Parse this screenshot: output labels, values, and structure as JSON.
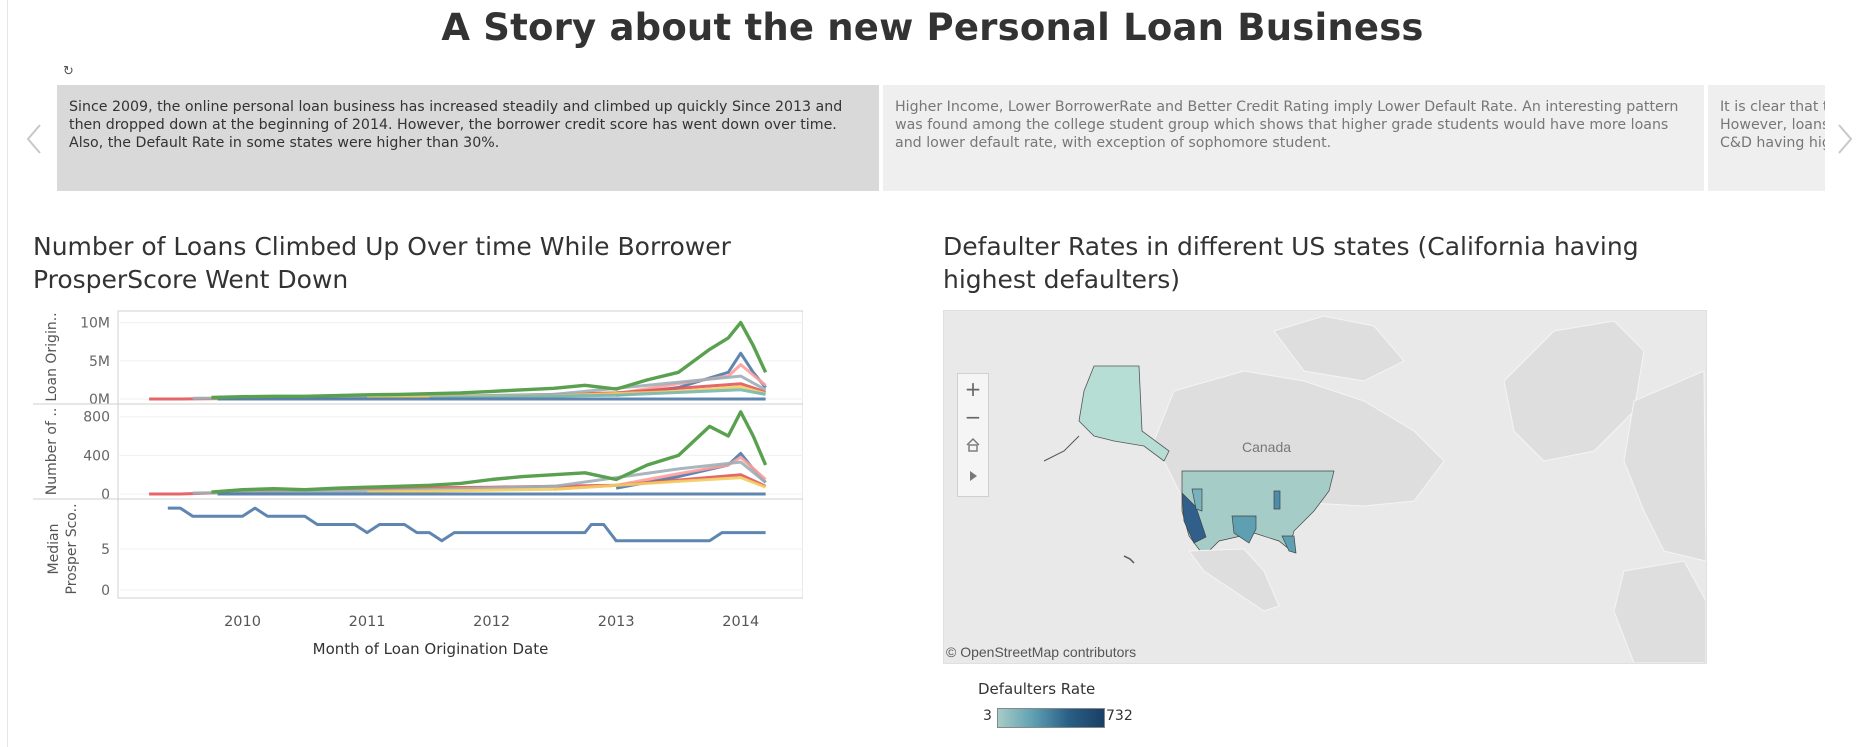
{
  "dashboard": {
    "title": "A Story about the new Personal Loan Business"
  },
  "story": {
    "points": [
      "Since 2009, the online personal loan business has increased steadily and climbed up quickly Since 2013 and then dropped down at the beginning of 2014. However, the borrower credit score has went down over time. Also, the Default Rate in some states were higher than 30%.",
      "Higher Income, Lower BorrowerRate and Better Credit Rating imply Lower Default Rate. An interesting pattern was found among the college student group which shows that higher grade students would have more loans and lower default rate, with exception of sophomore student.",
      "It is clear that t\nHowever, loans\nC&D having hig"
    ],
    "icons": {
      "revert": "revert-icon",
      "prev": "chevron-left-icon",
      "next": "chevron-right-icon"
    }
  },
  "left_sheet": {
    "title": "Number of Loans Climbed Up Over time While Borrower ProsperScore Went Down"
  },
  "chart_data": {
    "type": "line",
    "xlabel": "Month of Loan Origination Date",
    "x_ticks": [
      "2010",
      "2011",
      "2012",
      "2013",
      "2014"
    ],
    "panes": [
      {
        "ylabel": "Loan Origin..",
        "y_ticks": [
          "10M",
          "5M",
          "0M"
        ],
        "ylim": [
          0,
          11000000
        ],
        "series": [
          {
            "color": "#59a14f",
            "highlight": true,
            "points": [
              [
                2009.75,
                200000
              ],
              [
                2010.0,
                300000
              ],
              [
                2010.25,
                350000
              ],
              [
                2010.5,
                350000
              ],
              [
                2010.75,
                450000
              ],
              [
                2011.0,
                550000
              ],
              [
                2011.25,
                600000
              ],
              [
                2011.5,
                700000
              ],
              [
                2011.75,
                800000
              ],
              [
                2012.0,
                1000000
              ],
              [
                2012.25,
                1200000
              ],
              [
                2012.5,
                1400000
              ],
              [
                2012.75,
                1800000
              ],
              [
                2013.0,
                1300000
              ],
              [
                2013.25,
                2500000
              ],
              [
                2013.5,
                3500000
              ],
              [
                2013.75,
                6500000
              ],
              [
                2013.9,
                8000000
              ],
              [
                2014.0,
                10000000
              ],
              [
                2014.1,
                7000000
              ],
              [
                2014.2,
                3500000
              ]
            ]
          },
          {
            "color": "#4e79a7",
            "points": [
              [
                2013.0,
                500000
              ],
              [
                2013.5,
                1500000
              ],
              [
                2013.9,
                3500000
              ],
              [
                2014.0,
                6000000
              ],
              [
                2014.1,
                3500000
              ],
              [
                2014.2,
                1500000
              ]
            ]
          },
          {
            "color": "#ff9d9a",
            "points": [
              [
                2012.5,
                400000
              ],
              [
                2013.0,
                700000
              ],
              [
                2013.5,
                2000000
              ],
              [
                2013.9,
                3000000
              ],
              [
                2014.0,
                4500000
              ],
              [
                2014.2,
                1800000
              ]
            ]
          },
          {
            "color": "#e15759",
            "points": [
              [
                2009.25,
                0
              ],
              [
                2009.5,
                0
              ],
              [
                2012.0,
                400000
              ],
              [
                2013.0,
                800000
              ],
              [
                2014.0,
                2000000
              ],
              [
                2014.2,
                900000
              ]
            ]
          },
          {
            "color": "#9cafb7",
            "points": [
              [
                2009.6,
                100000
              ],
              [
                2011.0,
                200000
              ],
              [
                2012.5,
                600000
              ],
              [
                2013.5,
                2200000
              ],
              [
                2014.0,
                3000000
              ],
              [
                2014.2,
                1200000
              ]
            ]
          },
          {
            "color": "#f1ce63",
            "points": [
              [
                2011.0,
                150000
              ],
              [
                2012.5,
                400000
              ],
              [
                2013.5,
                1000000
              ],
              [
                2014.0,
                1600000
              ],
              [
                2014.2,
                700000
              ]
            ]
          },
          {
            "color": "#76b7b2",
            "points": [
              [
                2011.5,
                150000
              ],
              [
                2013.0,
                500000
              ],
              [
                2014.0,
                1200000
              ],
              [
                2014.2,
                600000
              ]
            ]
          },
          {
            "color": "#4e79a7",
            "points": [
              [
                2009.8,
                0
              ],
              [
                2014.2,
                0
              ]
            ]
          }
        ]
      },
      {
        "ylabel": "Number of ..",
        "y_ticks": [
          "800",
          "400",
          "0"
        ],
        "ylim": [
          0,
          880
        ],
        "series": [
          {
            "color": "#59a14f",
            "highlight": true,
            "points": [
              [
                2009.75,
                20
              ],
              [
                2010.0,
                45
              ],
              [
                2010.25,
                55
              ],
              [
                2010.5,
                45
              ],
              [
                2010.75,
                60
              ],
              [
                2011.0,
                70
              ],
              [
                2011.25,
                80
              ],
              [
                2011.5,
                90
              ],
              [
                2011.75,
                110
              ],
              [
                2012.0,
                150
              ],
              [
                2012.25,
                180
              ],
              [
                2012.5,
                200
              ],
              [
                2012.75,
                220
              ],
              [
                2013.0,
                150
              ],
              [
                2013.25,
                300
              ],
              [
                2013.5,
                400
              ],
              [
                2013.75,
                700
              ],
              [
                2013.9,
                600
              ],
              [
                2014.0,
                850
              ],
              [
                2014.1,
                600
              ],
              [
                2014.2,
                300
              ]
            ]
          },
          {
            "color": "#4e79a7",
            "points": [
              [
                2013.0,
                60
              ],
              [
                2013.5,
                180
              ],
              [
                2013.9,
                300
              ],
              [
                2014.0,
                420
              ],
              [
                2014.1,
                260
              ],
              [
                2014.2,
                120
              ]
            ]
          },
          {
            "color": "#ff9d9a",
            "points": [
              [
                2012.5,
                50
              ],
              [
                2013.0,
                90
              ],
              [
                2013.5,
                210
              ],
              [
                2013.9,
                300
              ],
              [
                2014.0,
                380
              ],
              [
                2014.2,
                150
              ]
            ]
          },
          {
            "color": "#e15759",
            "points": [
              [
                2009.25,
                0
              ],
              [
                2009.5,
                0
              ],
              [
                2011.0,
                60
              ],
              [
                2012.0,
                70
              ],
              [
                2013.0,
                90
              ],
              [
                2014.0,
                200
              ],
              [
                2014.2,
                80
              ]
            ]
          },
          {
            "color": "#9cafb7",
            "points": [
              [
                2009.6,
                10
              ],
              [
                2011.0,
                30
              ],
              [
                2012.5,
                80
              ],
              [
                2013.5,
                260
              ],
              [
                2014.0,
                330
              ],
              [
                2014.2,
                120
              ]
            ]
          },
          {
            "color": "#f1ce63",
            "points": [
              [
                2011.0,
                20
              ],
              [
                2012.5,
                50
              ],
              [
                2013.5,
                130
              ],
              [
                2014.0,
                170
              ],
              [
                2014.2,
                70
              ]
            ]
          },
          {
            "color": "#4e79a7",
            "points": [
              [
                2009.8,
                0
              ],
              [
                2014.2,
                0
              ]
            ]
          }
        ]
      },
      {
        "ylabel": "Median Prosper Sco..",
        "y_ticks": [
          "5",
          "0"
        ],
        "ylim": [
          -0.5,
          10.5
        ],
        "series": [
          {
            "color": "#4e79a7",
            "points": [
              [
                2009.4,
                10
              ],
              [
                2009.5,
                10
              ],
              [
                2009.6,
                9
              ],
              [
                2010.0,
                9
              ],
              [
                2010.1,
                10
              ],
              [
                2010.2,
                9
              ],
              [
                2010.5,
                9
              ],
              [
                2010.6,
                8
              ],
              [
                2010.9,
                8
              ],
              [
                2011.0,
                7
              ],
              [
                2011.1,
                8
              ],
              [
                2011.3,
                8
              ],
              [
                2011.4,
                7
              ],
              [
                2011.5,
                7
              ],
              [
                2011.6,
                6
              ],
              [
                2011.7,
                7
              ],
              [
                2012.6,
                7
              ],
              [
                2012.75,
                7
              ],
              [
                2012.8,
                8
              ],
              [
                2012.9,
                8
              ],
              [
                2013.0,
                6
              ],
              [
                2013.75,
                6
              ],
              [
                2013.85,
                7
              ],
              [
                2014.2,
                7
              ]
            ]
          }
        ]
      }
    ]
  },
  "right_sheet": {
    "title": "Defaulter Rates in different US states (California having highest defaulters)",
    "map": {
      "country_label": "Canada",
      "attribution": "© OpenStreetMap contributors",
      "controls": {
        "zoom_in": "+",
        "zoom_out": "−"
      },
      "icons": {
        "home": "home-icon",
        "play": "play-icon"
      },
      "colors": {
        "low": "#a6ccc7",
        "high": "#1a3f66",
        "land": "#dedede",
        "water": "#e9e9e9"
      }
    },
    "legend": {
      "title": "Defaulters Rate",
      "min": "3",
      "max": "732"
    }
  }
}
